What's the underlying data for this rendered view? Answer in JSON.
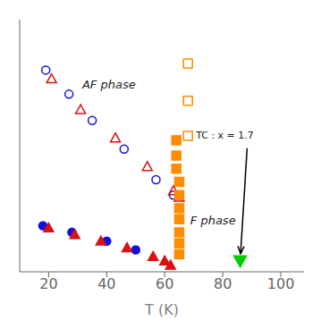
{
  "chart_data": {
    "type": "scatter",
    "xlabel": "T (K)",
    "xlim": [
      10,
      108
    ],
    "ylim": [
      0,
      11.5
    ],
    "xticks": [
      20,
      40,
      60,
      80,
      100
    ],
    "yticks": [],
    "tick_labels": "x",
    "grid": false,
    "series": [
      {
        "color": "#1010dd",
        "marker": "circle_open",
        "x": [
          19,
          27,
          35,
          46,
          57,
          63
        ],
        "values": [
          9.2,
          8.1,
          6.9,
          5.6,
          4.2,
          3.5
        ]
      },
      {
        "color": "#dd1010",
        "marker": "triangle_open",
        "x": [
          21,
          31,
          43,
          54,
          63,
          65
        ],
        "values": [
          8.8,
          7.4,
          6.1,
          4.8,
          3.7,
          3.4
        ]
      },
      {
        "color": "#ff8c00",
        "marker": "square_open",
        "x": [
          68,
          68,
          68
        ],
        "values": [
          9.5,
          7.8,
          6.2
        ]
      },
      {
        "color": "#ff8c00",
        "marker": "square",
        "x": [
          64,
          64,
          64,
          65,
          65,
          65,
          65,
          65,
          65,
          65
        ],
        "values": [
          6.0,
          5.3,
          4.7,
          4.1,
          3.5,
          2.9,
          2.4,
          1.8,
          1.3,
          0.8
        ]
      },
      {
        "color": "#1010dd",
        "marker": "circle",
        "x": [
          18,
          28,
          40,
          50
        ],
        "values": [
          2.1,
          1.8,
          1.4,
          1.0
        ]
      },
      {
        "color": "#dd1010",
        "marker": "triangle",
        "x": [
          20,
          29,
          38,
          47,
          56,
          60,
          62
        ],
        "values": [
          2.0,
          1.7,
          1.4,
          1.1,
          0.7,
          0.5,
          0.3
        ]
      },
      {
        "color": "#00cc00",
        "marker": "triangle_down",
        "x": [
          86
        ],
        "values": [
          0.5
        ]
      }
    ],
    "annotations": [
      {
        "text": "AF phase"
      },
      {
        "text": "F phase"
      },
      {
        "text": "TC : x = 1.7",
        "arrow_to": [
          86,
          0.5
        ]
      }
    ]
  }
}
